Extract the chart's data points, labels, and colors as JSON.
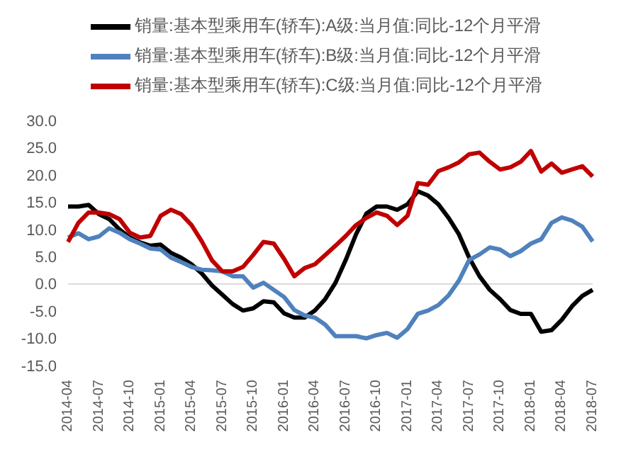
{
  "chart_data": {
    "type": "line",
    "categories": [
      "2014-04",
      null,
      null,
      "2014-07",
      null,
      null,
      "2014-10",
      null,
      null,
      "2015-01",
      null,
      null,
      "2015-04",
      null,
      null,
      "2015-07",
      null,
      null,
      "2015-10",
      null,
      null,
      "2016-01",
      null,
      null,
      "2016-04",
      null,
      null,
      "2016-07",
      null,
      null,
      "2016-10",
      null,
      null,
      "2017-01",
      null,
      null,
      "2017-04",
      null,
      null,
      "2017-07",
      null,
      null,
      "2017-10",
      null,
      null,
      "2018-01",
      null,
      null,
      "2018-04",
      null,
      null,
      "2018-07"
    ],
    "series": [
      {
        "name": "销量:基本型乘用车(轿车):A级:当月值:同比-12个月平滑",
        "color": "#000000",
        "values": [
          14.2,
          14.2,
          14.5,
          12.8,
          11.9,
          10,
          8.5,
          7.6,
          7,
          7.2,
          5.7,
          4.8,
          3.6,
          1.9,
          -0.3,
          -2,
          -3.7,
          -4.9,
          -4.5,
          -3.2,
          -3.4,
          -5.4,
          -6.2,
          -6.2,
          -4.9,
          -2.8,
          0.2,
          4.4,
          9.1,
          12.9,
          14.2,
          14.2,
          13.6,
          14.6,
          17,
          16.2,
          14.6,
          12.1,
          9.1,
          4.8,
          1.4,
          -1.1,
          -2.8,
          -4.8,
          -5.5,
          -5.5,
          -8.8,
          -8.5,
          -6.6,
          -4.1,
          -2.2,
          -1.1
        ]
      },
      {
        "name": "销量:基本型乘用车(轿车):B级:当月值:同比-12个月平滑",
        "color": "#4f81bd",
        "values": [
          8.5,
          9.3,
          8.2,
          8.7,
          10.2,
          9.4,
          8.2,
          7.4,
          6.5,
          6.3,
          4.8,
          4,
          3.1,
          2.6,
          2.5,
          2.3,
          1.4,
          1.4,
          -0.7,
          0.2,
          -1.1,
          -2.4,
          -4.8,
          -5.8,
          -6.2,
          -7.5,
          -9.6,
          -9.6,
          -9.6,
          -10,
          -9.4,
          -9,
          -9.9,
          -8.3,
          -5.5,
          -4.9,
          -3.9,
          -2.1,
          0.6,
          4.4,
          5.4,
          6.7,
          6.3,
          5.1,
          6,
          7.4,
          8.2,
          11.2,
          12.2,
          11.6,
          10.5,
          7.8
        ]
      },
      {
        "name": "销量:基本型乘用车(轿车):C级:当月值:同比-12个月平滑",
        "color": "#c00000",
        "values": [
          7.7,
          11.2,
          13.1,
          13.1,
          12.8,
          11.9,
          9.4,
          8.5,
          8.8,
          12.5,
          13.6,
          12.8,
          10.8,
          7.8,
          4.3,
          2.3,
          2.3,
          3.1,
          5.3,
          7.7,
          7.4,
          4.6,
          1.4,
          2.9,
          3.6,
          5.3,
          7,
          8.8,
          10.8,
          12.1,
          13.1,
          12.5,
          10.8,
          12.5,
          18.5,
          18.2,
          20.7,
          21.4,
          22.3,
          23.8,
          24.1,
          22.4,
          21,
          21.4,
          22.4,
          24.4,
          20.6,
          22.1,
          20.4,
          21,
          21.6,
          19.7
        ]
      }
    ],
    "ylim": [
      -15,
      30
    ],
    "yticks": [
      {
        "value": -15,
        "label": "-15.0"
      },
      {
        "value": -10,
        "label": "-10.0"
      },
      {
        "value": -5,
        "label": "-5.0"
      },
      {
        "value": 0,
        "label": "0.0"
      },
      {
        "value": 5,
        "label": "5.0"
      },
      {
        "value": 10,
        "label": "10.0"
      },
      {
        "value": 15,
        "label": "15.0"
      },
      {
        "value": 20,
        "label": "20.0"
      },
      {
        "value": 25,
        "label": "25.0"
      },
      {
        "value": 30,
        "label": "30.0"
      }
    ],
    "ref_lines": [
      {
        "axis": "y",
        "value": 0,
        "color": "#d9d9d9"
      }
    ],
    "legend": "top",
    "grid": false,
    "marker": "none",
    "line_style": "solid"
  }
}
